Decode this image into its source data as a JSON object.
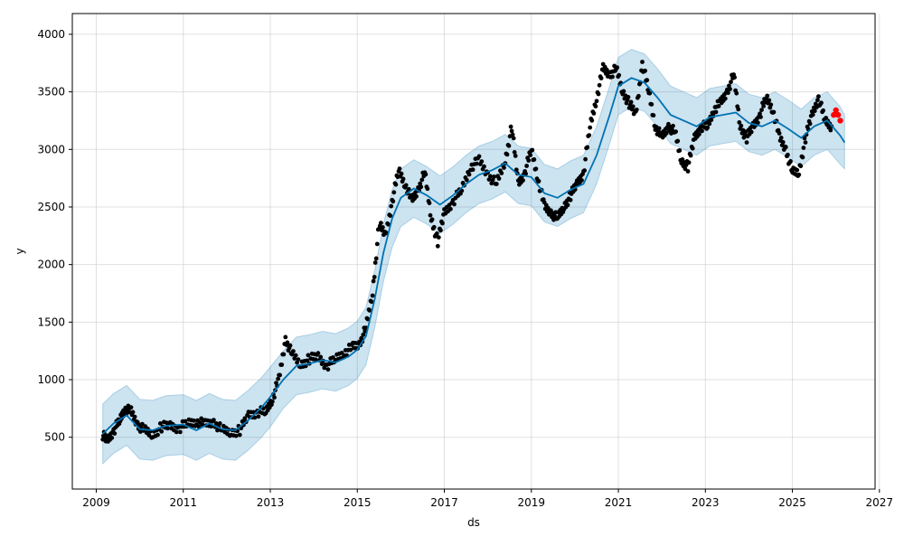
{
  "chart_data": {
    "type": "scatter",
    "title": "",
    "xlabel": "ds",
    "ylabel": "y",
    "xlim": [
      2008.45,
      2026.9
    ],
    "ylim": [
      50,
      4180
    ],
    "x_ticks": [
      2009,
      2011,
      2013,
      2015,
      2017,
      2019,
      2021,
      2023,
      2025,
      2027
    ],
    "y_ticks": [
      500,
      1000,
      1500,
      2000,
      2500,
      3000,
      3500,
      4000
    ],
    "grid": true,
    "colors": {
      "observed": "#000000",
      "forecast_line": "#0072B2",
      "uncertainty_band": "#0072B2",
      "recent_points": "#ff0000",
      "grid": "#cccccc"
    },
    "forecast": {
      "x": [
        2009.15,
        2009.4,
        2009.7,
        2010.0,
        2010.3,
        2010.6,
        2011.0,
        2011.3,
        2011.6,
        2011.9,
        2012.2,
        2012.5,
        2012.8,
        2013.0,
        2013.3,
        2013.6,
        2013.9,
        2014.2,
        2014.5,
        2014.8,
        2015.0,
        2015.2,
        2015.4,
        2015.6,
        2015.8,
        2016.0,
        2016.3,
        2016.6,
        2016.9,
        2017.2,
        2017.5,
        2017.8,
        2018.1,
        2018.4,
        2018.7,
        2019.0,
        2019.3,
        2019.6,
        2019.9,
        2020.2,
        2020.5,
        2020.8,
        2021.0,
        2021.3,
        2021.6,
        2021.9,
        2022.2,
        2022.5,
        2022.8,
        2023.1,
        2023.4,
        2023.7,
        2024.0,
        2024.3,
        2024.6,
        2024.9,
        2025.2,
        2025.5,
        2025.8,
        2026.1,
        2026.2
      ],
      "yhat": [
        530,
        620,
        690,
        570,
        560,
        600,
        610,
        560,
        620,
        570,
        560,
        650,
        760,
        850,
        1000,
        1120,
        1140,
        1170,
        1150,
        1200,
        1260,
        1380,
        1700,
        2100,
        2400,
        2580,
        2660,
        2600,
        2520,
        2600,
        2700,
        2780,
        2820,
        2880,
        2780,
        2760,
        2620,
        2580,
        2650,
        2700,
        2950,
        3300,
        3550,
        3620,
        3580,
        3450,
        3300,
        3250,
        3200,
        3280,
        3300,
        3320,
        3230,
        3200,
        3250,
        3180,
        3100,
        3200,
        3250,
        3120,
        3060
      ],
      "lower": [
        270,
        360,
        430,
        310,
        300,
        340,
        350,
        300,
        360,
        310,
        300,
        390,
        500,
        590,
        750,
        870,
        890,
        920,
        900,
        950,
        1010,
        1130,
        1450,
        1850,
        2150,
        2330,
        2410,
        2350,
        2270,
        2350,
        2450,
        2530,
        2570,
        2630,
        2530,
        2510,
        2370,
        2330,
        2400,
        2450,
        2700,
        3050,
        3300,
        3370,
        3330,
        3200,
        3050,
        3000,
        2950,
        3030,
        3050,
        3070,
        2980,
        2950,
        3000,
        2930,
        2850,
        2950,
        3000,
        2870,
        2830
      ],
      "upper": [
        790,
        880,
        950,
        830,
        820,
        860,
        870,
        820,
        880,
        830,
        820,
        910,
        1020,
        1110,
        1250,
        1370,
        1390,
        1420,
        1400,
        1450,
        1510,
        1630,
        1950,
        2350,
        2650,
        2830,
        2910,
        2850,
        2770,
        2850,
        2950,
        3030,
        3070,
        3130,
        3030,
        3010,
        2870,
        2830,
        2900,
        2950,
        3200,
        3550,
        3800,
        3870,
        3830,
        3700,
        3550,
        3500,
        3450,
        3530,
        3550,
        3570,
        3480,
        3450,
        3500,
        3430,
        3350,
        3450,
        3500,
        3370,
        3300
      ]
    },
    "observed_trace": {
      "x": [
        2009.15,
        2009.25,
        2009.4,
        2009.55,
        2009.65,
        2009.8,
        2009.95,
        2010.1,
        2010.3,
        2010.5,
        2010.7,
        2010.9,
        2011.1,
        2011.3,
        2011.5,
        2011.7,
        2011.9,
        2012.1,
        2012.3,
        2012.5,
        2012.7,
        2012.9,
        2013.05,
        2013.2,
        2013.35,
        2013.5,
        2013.7,
        2013.9,
        2014.1,
        2014.3,
        2014.5,
        2014.7,
        2014.9,
        2015.05,
        2015.2,
        2015.35,
        2015.5,
        2015.65,
        2015.8,
        2015.95,
        2016.1,
        2016.25,
        2016.4,
        2016.55,
        2016.7,
        2016.85,
        2017.0,
        2017.2,
        2017.4,
        2017.6,
        2017.8,
        2018.0,
        2018.2,
        2018.4,
        2018.55,
        2018.7,
        2018.85,
        2019.0,
        2019.15,
        2019.3,
        2019.45,
        2019.6,
        2019.75,
        2019.9,
        2020.05,
        2020.2,
        2020.35,
        2020.5,
        2020.65,
        2020.8,
        2020.95,
        2021.1,
        2021.25,
        2021.4,
        2021.55,
        2021.7,
        2021.85,
        2022.0,
        2022.15,
        2022.3,
        2022.45,
        2022.6,
        2022.75,
        2022.9,
        2023.05,
        2023.2,
        2023.35,
        2023.5,
        2023.65,
        2023.8,
        2023.95,
        2024.1,
        2024.25,
        2024.4,
        2024.55,
        2024.7,
        2024.85,
        2025.0,
        2025.15,
        2025.3,
        2025.45,
        2025.6,
        2025.75,
        2025.9
      ],
      "y": [
        520,
        470,
        560,
        650,
        750,
        720,
        610,
        560,
        520,
        590,
        600,
        580,
        620,
        640,
        610,
        630,
        560,
        540,
        560,
        690,
        720,
        720,
        840,
        1000,
        1350,
        1220,
        1130,
        1180,
        1200,
        1120,
        1180,
        1240,
        1280,
        1310,
        1450,
        1750,
        2350,
        2250,
        2550,
        2820,
        2700,
        2550,
        2650,
        2800,
        2400,
        2200,
        2450,
        2550,
        2650,
        2850,
        2900,
        2780,
        2700,
        2900,
        3200,
        2700,
        2800,
        3000,
        2750,
        2500,
        2450,
        2400,
        2500,
        2600,
        2700,
        2800,
        3200,
        3450,
        3700,
        3650,
        3700,
        3500,
        3400,
        3300,
        3750,
        3500,
        3200,
        3100,
        3200,
        3150,
        2900,
        2850,
        3100,
        3200,
        3200,
        3350,
        3400,
        3500,
        3650,
        3200,
        3100,
        3200,
        3300,
        3450,
        3350,
        3100,
        3000,
        2800,
        2800,
        3100,
        3300,
        3450,
        3250,
        3200
      ]
    },
    "recent_points": {
      "x": [
        2025.95,
        2026.0,
        2026.05,
        2026.1
      ],
      "y": [
        3300,
        3340,
        3300,
        3250
      ]
    }
  }
}
